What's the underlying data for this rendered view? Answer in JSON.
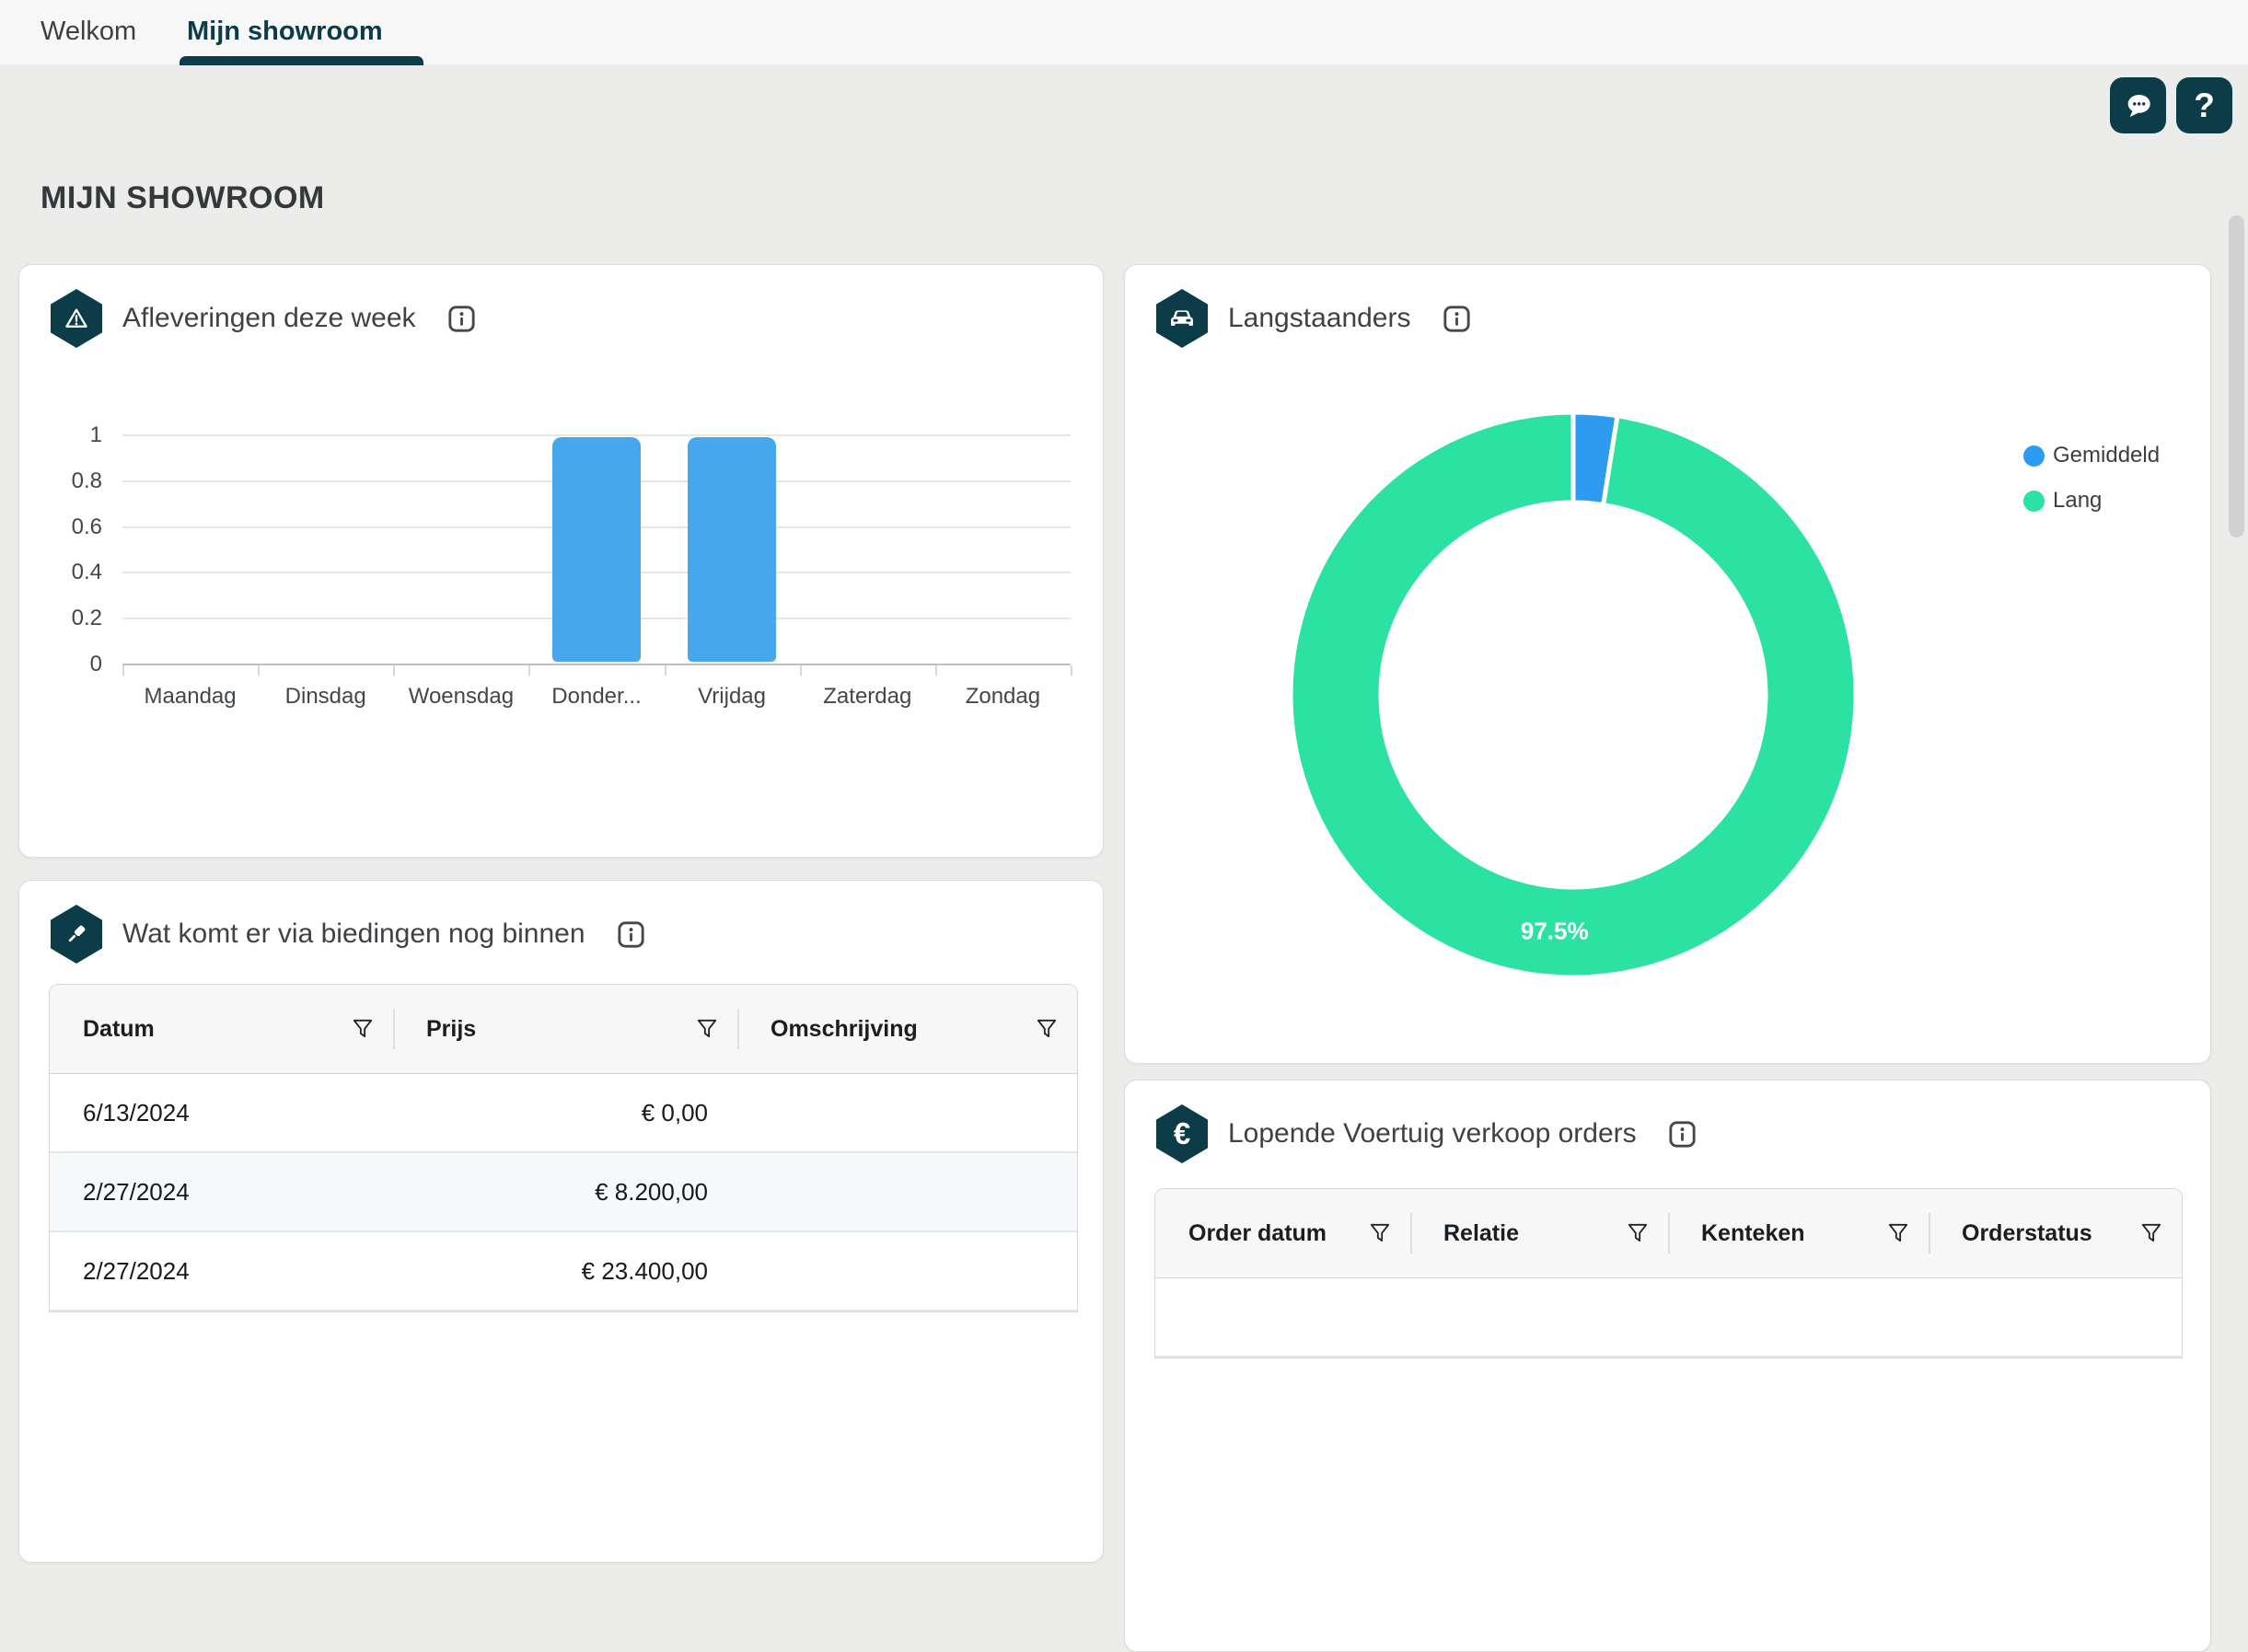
{
  "tabs": [
    {
      "label": "Welkom",
      "active": false
    },
    {
      "label": "Mijn showroom",
      "active": true
    }
  ],
  "page_title": "MIJN SHOWROOM",
  "topbar": {
    "chat_icon": "speech-bubble-icon",
    "help_label": "?"
  },
  "colors": {
    "accent_teal": "#0d3c49",
    "bar_blue": "#47a7ec",
    "donut_blue": "#2e9bf3",
    "donut_green": "#2be2a2",
    "page_background": "#ececea"
  },
  "cards": {
    "afleveringen": {
      "title": "Afleveringen deze week",
      "icon": "warning-triangle-icon"
    },
    "langstaanders": {
      "title": "Langstaanders",
      "icon": "car-icon"
    },
    "biedingen": {
      "title": "Wat komt er via biedingen nog binnen",
      "icon": "gavel-icon",
      "table": {
        "headers": [
          "Datum",
          "Prijs",
          "Omschrijving"
        ],
        "rows": [
          {
            "datum": "6/13/2024",
            "prijs": "€ 0,00",
            "omschrijving": ""
          },
          {
            "datum": "2/27/2024",
            "prijs": "€ 8.200,00",
            "omschrijving": ""
          },
          {
            "datum": "2/27/2024",
            "prijs": "€ 23.400,00",
            "omschrijving": ""
          }
        ]
      }
    },
    "lopende": {
      "title": "Lopende Voertuig verkoop orders",
      "icon": "euro-icon",
      "table": {
        "headers": [
          "Order datum",
          "Relatie",
          "Kenteken",
          "Orderstatus"
        ],
        "rows": []
      }
    }
  },
  "chart_data": [
    {
      "type": "bar",
      "title": "Afleveringen deze week",
      "categories": [
        "Maandag",
        "Dinsdag",
        "Woensdag",
        "Donder...",
        "Vrijdag",
        "Zaterdag",
        "Zondag"
      ],
      "values": [
        0,
        0,
        0,
        1,
        1,
        0,
        0
      ],
      "yticks": [
        0,
        0.2,
        0.4,
        0.6,
        0.8,
        1
      ],
      "ylim": [
        0,
        1
      ],
      "xlabel": "",
      "ylabel": "",
      "grid": true,
      "legend": false,
      "bar_color": "#47a7ec"
    },
    {
      "type": "donut",
      "title": "Langstaanders",
      "slices": [
        {
          "label": "Gemiddeld",
          "value": 2.5,
          "color": "#2e9bf3"
        },
        {
          "label": "Lang",
          "value": 97.5,
          "color": "#2be2a2"
        }
      ],
      "data_label": "97.5%",
      "legend_position": "top-right"
    }
  ]
}
